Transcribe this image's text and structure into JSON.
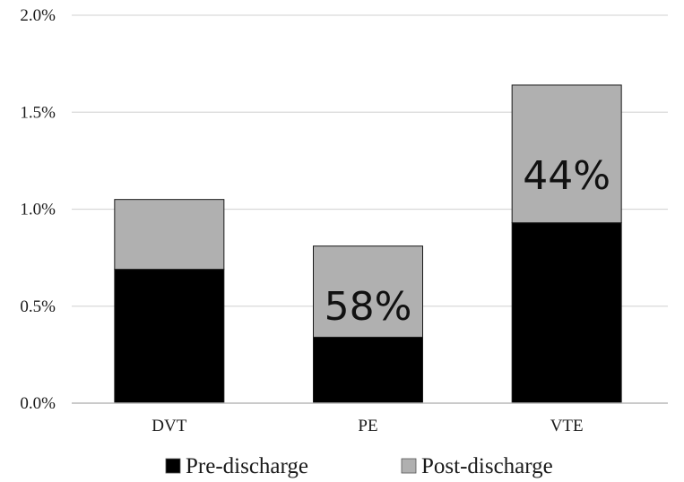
{
  "chart_data": {
    "type": "bar",
    "stacked": true,
    "categories": [
      "DVT",
      "PE",
      "VTE"
    ],
    "series": [
      {
        "name": "Pre-discharge",
        "color": "#000000",
        "values": [
          0.69,
          0.34,
          0.93
        ]
      },
      {
        "name": "Post-discharge",
        "color": "#b0b0b0",
        "values": [
          0.36,
          0.47,
          0.71
        ]
      }
    ],
    "ylim": [
      0,
      2.0
    ],
    "y_ticks": [
      0,
      0.5,
      1.0,
      1.5,
      2.0
    ],
    "y_tick_labels": [
      "0.0%",
      "0.5%",
      "1.0%",
      "1.5%",
      "2.0%"
    ],
    "grid": true,
    "legend_position": "bottom",
    "annotations": [
      {
        "category": "PE",
        "text": "58%"
      },
      {
        "category": "VTE",
        "text": "44%"
      }
    ]
  }
}
